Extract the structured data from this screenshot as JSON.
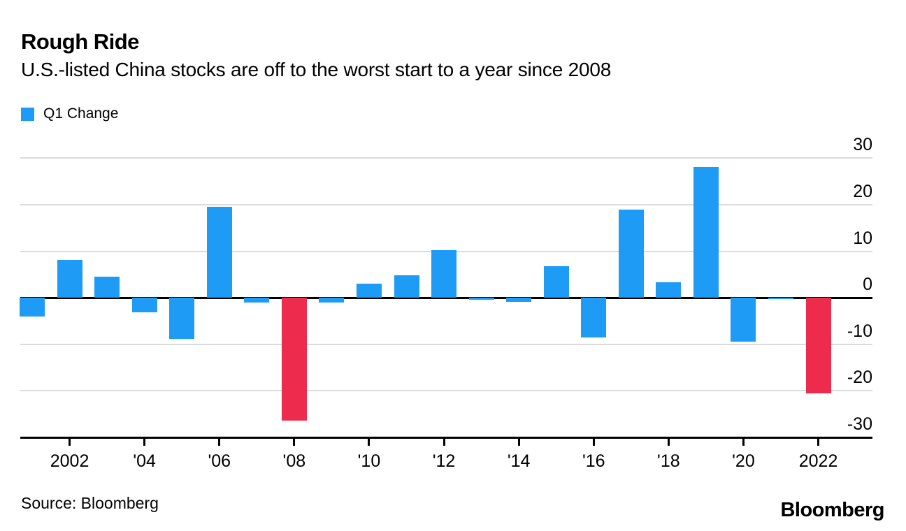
{
  "chart_data": {
    "type": "bar",
    "title": "Rough Ride",
    "subtitle": "U.S.-listed China stocks are off to the worst start to a year since 2008",
    "legend_label": "Q1 Change",
    "series_name": "Q1 Change",
    "x": [
      2001,
      2002,
      2003,
      2004,
      2005,
      2006,
      2007,
      2008,
      2009,
      2010,
      2011,
      2012,
      2013,
      2014,
      2015,
      2016,
      2017,
      2018,
      2019,
      2020,
      2021,
      2022
    ],
    "values": [
      -4.0,
      8.2,
      4.5,
      -3.1,
      -8.8,
      19.6,
      -1.0,
      -26.4,
      -1.1,
      3.0,
      4.9,
      10.3,
      -0.4,
      -0.9,
      6.8,
      -8.6,
      19.0,
      3.3,
      28.1,
      -9.4,
      -0.3,
      -20.5
    ],
    "highlight_years": [
      2008,
      2022
    ],
    "bar_color": "#1E9BF5",
    "highlight_color": "#ED2B4D",
    "grid": true,
    "legend_position": "top-left",
    "y_axis_side": "right",
    "ylim": [
      -30,
      35
    ],
    "yticks": [
      30,
      20,
      10,
      0,
      -10,
      -20,
      -30
    ],
    "xticks": [
      {
        "year": 2002,
        "label": "2002"
      },
      {
        "year": 2004,
        "label": "'04"
      },
      {
        "year": 2006,
        "label": "'06"
      },
      {
        "year": 2008,
        "label": "'08"
      },
      {
        "year": 2010,
        "label": "'10"
      },
      {
        "year": 2012,
        "label": "'12"
      },
      {
        "year": 2014,
        "label": "'14"
      },
      {
        "year": 2016,
        "label": "'16"
      },
      {
        "year": 2018,
        "label": "'18"
      },
      {
        "year": 2020,
        "label": "'20"
      },
      {
        "year": 2022,
        "label": "2022"
      }
    ]
  },
  "footer": {
    "source": "Source: Bloomberg",
    "logo": "Bloomberg"
  }
}
